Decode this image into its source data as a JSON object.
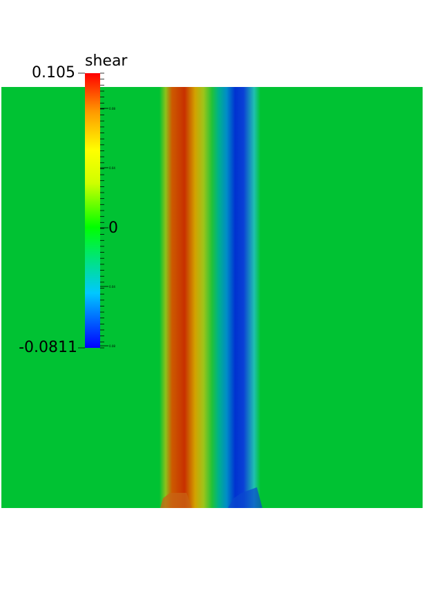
{
  "colorbar": {
    "title": "shear",
    "max_label": "0.105",
    "mid_label": "0",
    "min_label": "-0.0811",
    "minor_labels": [
      "0.08",
      "0.04",
      "0.04",
      "0.08"
    ],
    "range": [
      -0.0811,
      0.105
    ],
    "colormap": [
      "#0000ff",
      "#00ffff",
      "#00ff00",
      "#ffff00",
      "#ff0000"
    ]
  },
  "field": {
    "background_color": "#00c233",
    "band_positive_color": "#c83200",
    "band_negative_color": "#0028c8"
  }
}
